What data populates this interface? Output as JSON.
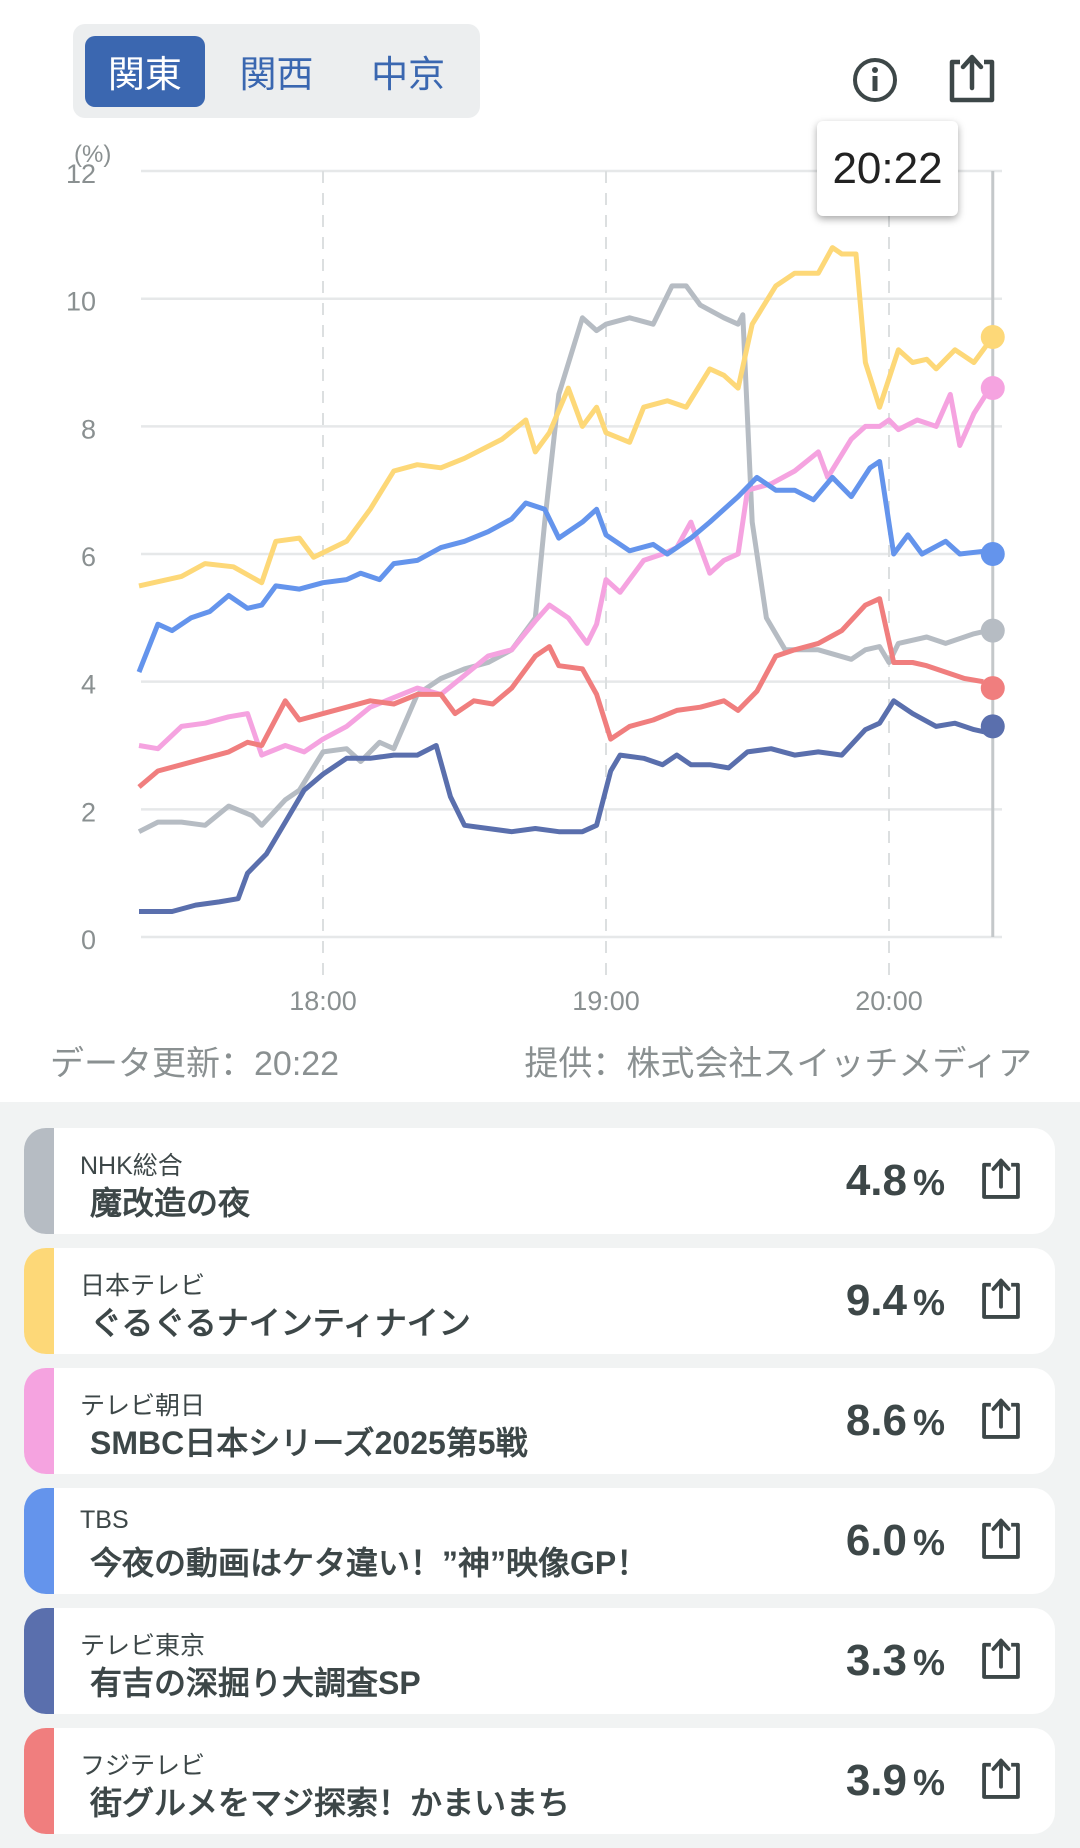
{
  "tabs": [
    {
      "label": "関東",
      "active": true
    },
    {
      "label": "関西",
      "active": false
    },
    {
      "label": "中京",
      "active": false
    }
  ],
  "icons": {
    "info": "info-circle-icon",
    "share": "share-icon"
  },
  "tooltip": "20:22",
  "footer": {
    "updated": "データ更新：20:22",
    "provider": "提供：株式会社スイッチメディア"
  },
  "chart_data": {
    "type": "line",
    "ylabel": "(%)",
    "ylim": [
      0,
      12
    ],
    "yticks": [
      "0",
      "2",
      "4",
      "6",
      "8",
      "10",
      "12"
    ],
    "xticks": [
      "18:00",
      "19:00",
      "20:00"
    ],
    "xrange": [
      "17:21",
      "20:22"
    ],
    "current_time": "20:22",
    "grid": true,
    "series": [
      {
        "name": "NHK総合",
        "color": "#b6bcc3",
        "last": 4.8,
        "points": [
          [
            "17:21",
            1.65
          ],
          [
            "17:25",
            1.8
          ],
          [
            "17:30",
            1.8
          ],
          [
            "17:35",
            1.75
          ],
          [
            "17:40",
            2.05
          ],
          [
            "17:45",
            1.9
          ],
          [
            "17:47",
            1.75
          ],
          [
            "17:52",
            2.15
          ],
          [
            "17:55",
            2.3
          ],
          [
            "18:00",
            2.9
          ],
          [
            "18:05",
            2.95
          ],
          [
            "18:08",
            2.75
          ],
          [
            "18:12",
            3.05
          ],
          [
            "18:15",
            2.95
          ],
          [
            "18:20",
            3.8
          ],
          [
            "18:25",
            4.05
          ],
          [
            "18:30",
            4.2
          ],
          [
            "18:35",
            4.3
          ],
          [
            "18:40",
            4.5
          ],
          [
            "18:45",
            5.0
          ],
          [
            "18:47",
            6.5
          ],
          [
            "18:50",
            8.5
          ],
          [
            "18:55",
            9.7
          ],
          [
            "18:58",
            9.5
          ],
          [
            "19:00",
            9.6
          ],
          [
            "19:05",
            9.7
          ],
          [
            "19:10",
            9.6
          ],
          [
            "19:14",
            10.2
          ],
          [
            "19:17",
            10.2
          ],
          [
            "19:20",
            9.9
          ],
          [
            "19:25",
            9.7
          ],
          [
            "19:28",
            9.6
          ],
          [
            "19:29",
            9.75
          ],
          [
            "19:31",
            6.5
          ],
          [
            "19:34",
            5.0
          ],
          [
            "19:38",
            4.5
          ],
          [
            "19:45",
            4.5
          ],
          [
            "19:52",
            4.35
          ],
          [
            "19:55",
            4.5
          ],
          [
            "19:58",
            4.55
          ],
          [
            "20:00",
            4.3
          ],
          [
            "20:02",
            4.6
          ],
          [
            "20:08",
            4.7
          ],
          [
            "20:12",
            4.6
          ],
          [
            "20:18",
            4.75
          ],
          [
            "20:21",
            4.8
          ]
        ]
      },
      {
        "name": "日本テレビ",
        "color": "#fdd878",
        "last": 9.4,
        "points": [
          [
            "17:21",
            5.5
          ],
          [
            "17:30",
            5.65
          ],
          [
            "17:35",
            5.85
          ],
          [
            "17:41",
            5.8
          ],
          [
            "17:47",
            5.55
          ],
          [
            "17:50",
            6.2
          ],
          [
            "17:55",
            6.25
          ],
          [
            "17:58",
            5.95
          ],
          [
            "18:05",
            6.2
          ],
          [
            "18:10",
            6.7
          ],
          [
            "18:15",
            7.3
          ],
          [
            "18:20",
            7.4
          ],
          [
            "18:25",
            7.35
          ],
          [
            "18:30",
            7.5
          ],
          [
            "18:38",
            7.8
          ],
          [
            "18:43",
            8.1
          ],
          [
            "18:45",
            7.6
          ],
          [
            "18:48",
            7.9
          ],
          [
            "18:52",
            8.6
          ],
          [
            "18:55",
            8.0
          ],
          [
            "18:58",
            8.3
          ],
          [
            "19:00",
            7.9
          ],
          [
            "19:05",
            7.75
          ],
          [
            "19:08",
            8.3
          ],
          [
            "19:13",
            8.4
          ],
          [
            "19:17",
            8.3
          ],
          [
            "19:22",
            8.9
          ],
          [
            "19:25",
            8.8
          ],
          [
            "19:28",
            8.6
          ],
          [
            "19:31",
            9.6
          ],
          [
            "19:36",
            10.2
          ],
          [
            "19:40",
            10.4
          ],
          [
            "19:45",
            10.4
          ],
          [
            "19:48",
            10.8
          ],
          [
            "19:50",
            10.7
          ],
          [
            "19:53",
            10.7
          ],
          [
            "19:55",
            9.0
          ],
          [
            "19:58",
            8.3
          ],
          [
            "20:02",
            9.2
          ],
          [
            "20:05",
            9.0
          ],
          [
            "20:08",
            9.05
          ],
          [
            "20:10",
            8.9
          ],
          [
            "20:14",
            9.2
          ],
          [
            "20:18",
            9.0
          ],
          [
            "20:21",
            9.3
          ]
        ]
      },
      {
        "name": "テレビ朝日",
        "color": "#f5a3e0",
        "last": 8.6,
        "points": [
          [
            "17:21",
            3.0
          ],
          [
            "17:25",
            2.95
          ],
          [
            "17:30",
            3.3
          ],
          [
            "17:35",
            3.35
          ],
          [
            "17:40",
            3.45
          ],
          [
            "17:44",
            3.5
          ],
          [
            "17:47",
            2.85
          ],
          [
            "17:52",
            3.0
          ],
          [
            "17:56",
            2.9
          ],
          [
            "18:00",
            3.1
          ],
          [
            "18:05",
            3.3
          ],
          [
            "18:10",
            3.6
          ],
          [
            "18:15",
            3.75
          ],
          [
            "18:20",
            3.9
          ],
          [
            "18:25",
            3.8
          ],
          [
            "18:30",
            4.1
          ],
          [
            "18:35",
            4.4
          ],
          [
            "18:40",
            4.5
          ],
          [
            "18:45",
            4.95
          ],
          [
            "18:48",
            5.2
          ],
          [
            "18:52",
            5.0
          ],
          [
            "18:56",
            4.6
          ],
          [
            "18:58",
            4.9
          ],
          [
            "19:00",
            5.6
          ],
          [
            "19:03",
            5.4
          ],
          [
            "19:08",
            5.9
          ],
          [
            "19:12",
            6.0
          ],
          [
            "19:15",
            6.1
          ],
          [
            "19:18",
            6.5
          ],
          [
            "19:22",
            5.7
          ],
          [
            "19:25",
            5.9
          ],
          [
            "19:28",
            6.0
          ],
          [
            "19:30",
            7.0
          ],
          [
            "19:35",
            7.1
          ],
          [
            "19:40",
            7.3
          ],
          [
            "19:45",
            7.6
          ],
          [
            "19:47",
            7.2
          ],
          [
            "19:52",
            7.8
          ],
          [
            "19:55",
            8.0
          ],
          [
            "19:58",
            8.0
          ],
          [
            "20:00",
            8.1
          ],
          [
            "20:02",
            7.95
          ],
          [
            "20:06",
            8.1
          ],
          [
            "20:10",
            8.0
          ],
          [
            "20:13",
            8.5
          ],
          [
            "20:15",
            7.7
          ],
          [
            "20:18",
            8.2
          ],
          [
            "20:21",
            8.55
          ]
        ]
      },
      {
        "name": "TBS",
        "color": "#6494ec",
        "last": 6.0,
        "points": [
          [
            "17:21",
            4.15
          ],
          [
            "17:25",
            4.9
          ],
          [
            "17:28",
            4.8
          ],
          [
            "17:32",
            5.0
          ],
          [
            "17:36",
            5.1
          ],
          [
            "17:40",
            5.35
          ],
          [
            "17:44",
            5.15
          ],
          [
            "17:47",
            5.2
          ],
          [
            "17:50",
            5.5
          ],
          [
            "17:55",
            5.45
          ],
          [
            "18:00",
            5.55
          ],
          [
            "18:05",
            5.6
          ],
          [
            "18:08",
            5.7
          ],
          [
            "18:12",
            5.6
          ],
          [
            "18:15",
            5.85
          ],
          [
            "18:20",
            5.9
          ],
          [
            "18:25",
            6.1
          ],
          [
            "18:30",
            6.2
          ],
          [
            "18:35",
            6.35
          ],
          [
            "18:40",
            6.55
          ],
          [
            "18:43",
            6.8
          ],
          [
            "18:47",
            6.7
          ],
          [
            "18:50",
            6.25
          ],
          [
            "18:55",
            6.5
          ],
          [
            "18:58",
            6.7
          ],
          [
            "19:00",
            6.3
          ],
          [
            "19:05",
            6.05
          ],
          [
            "19:10",
            6.15
          ],
          [
            "19:13",
            6.0
          ],
          [
            "19:18",
            6.25
          ],
          [
            "19:22",
            6.5
          ],
          [
            "19:28",
            6.9
          ],
          [
            "19:32",
            7.2
          ],
          [
            "19:36",
            7.0
          ],
          [
            "19:40",
            7.0
          ],
          [
            "19:44",
            6.85
          ],
          [
            "19:48",
            7.2
          ],
          [
            "19:52",
            6.9
          ],
          [
            "19:56",
            7.35
          ],
          [
            "19:58",
            7.45
          ],
          [
            "20:01",
            6.0
          ],
          [
            "20:04",
            6.3
          ],
          [
            "20:07",
            6.0
          ],
          [
            "20:12",
            6.2
          ],
          [
            "20:15",
            6.0
          ],
          [
            "20:21",
            6.05
          ]
        ]
      },
      {
        "name": "テレビ東京",
        "color": "#5a6fad",
        "last": 3.3,
        "points": [
          [
            "17:21",
            0.4
          ],
          [
            "17:28",
            0.4
          ],
          [
            "17:33",
            0.5
          ],
          [
            "17:38",
            0.55
          ],
          [
            "17:42",
            0.6
          ],
          [
            "17:44",
            1.0
          ],
          [
            "17:48",
            1.3
          ],
          [
            "17:52",
            1.8
          ],
          [
            "17:56",
            2.3
          ],
          [
            "18:00",
            2.55
          ],
          [
            "18:05",
            2.8
          ],
          [
            "18:10",
            2.8
          ],
          [
            "18:15",
            2.85
          ],
          [
            "18:20",
            2.85
          ],
          [
            "18:24",
            3.0
          ],
          [
            "18:27",
            2.2
          ],
          [
            "18:30",
            1.75
          ],
          [
            "18:35",
            1.7
          ],
          [
            "18:40",
            1.65
          ],
          [
            "18:45",
            1.7
          ],
          [
            "18:50",
            1.65
          ],
          [
            "18:55",
            1.65
          ],
          [
            "18:58",
            1.75
          ],
          [
            "19:01",
            2.6
          ],
          [
            "19:03",
            2.85
          ],
          [
            "19:08",
            2.8
          ],
          [
            "19:12",
            2.7
          ],
          [
            "19:15",
            2.85
          ],
          [
            "19:18",
            2.7
          ],
          [
            "19:22",
            2.7
          ],
          [
            "19:26",
            2.65
          ],
          [
            "19:30",
            2.9
          ],
          [
            "19:35",
            2.95
          ],
          [
            "19:40",
            2.85
          ],
          [
            "19:45",
            2.9
          ],
          [
            "19:50",
            2.85
          ],
          [
            "19:55",
            3.25
          ],
          [
            "19:58",
            3.35
          ],
          [
            "20:01",
            3.7
          ],
          [
            "20:05",
            3.5
          ],
          [
            "20:10",
            3.3
          ],
          [
            "20:14",
            3.35
          ],
          [
            "20:18",
            3.25
          ],
          [
            "20:21",
            3.2
          ]
        ]
      },
      {
        "name": "フジテレビ",
        "color": "#f07e7e",
        "last": 3.9,
        "points": [
          [
            "17:21",
            2.35
          ],
          [
            "17:25",
            2.6
          ],
          [
            "17:30",
            2.7
          ],
          [
            "17:35",
            2.8
          ],
          [
            "17:40",
            2.9
          ],
          [
            "17:44",
            3.05
          ],
          [
            "17:47",
            3.0
          ],
          [
            "17:52",
            3.7
          ],
          [
            "17:55",
            3.4
          ],
          [
            "18:00",
            3.5
          ],
          [
            "18:05",
            3.6
          ],
          [
            "18:10",
            3.7
          ],
          [
            "18:15",
            3.65
          ],
          [
            "18:20",
            3.8
          ],
          [
            "18:25",
            3.8
          ],
          [
            "18:28",
            3.5
          ],
          [
            "18:32",
            3.7
          ],
          [
            "18:36",
            3.65
          ],
          [
            "18:40",
            3.9
          ],
          [
            "18:45",
            4.4
          ],
          [
            "18:48",
            4.55
          ],
          [
            "18:50",
            4.25
          ],
          [
            "18:55",
            4.2
          ],
          [
            "18:58",
            3.8
          ],
          [
            "19:01",
            3.1
          ],
          [
            "19:05",
            3.3
          ],
          [
            "19:10",
            3.4
          ],
          [
            "19:15",
            3.55
          ],
          [
            "19:20",
            3.6
          ],
          [
            "19:25",
            3.7
          ],
          [
            "19:28",
            3.55
          ],
          [
            "19:32",
            3.85
          ],
          [
            "19:36",
            4.4
          ],
          [
            "19:40",
            4.5
          ],
          [
            "19:45",
            4.6
          ],
          [
            "19:50",
            4.8
          ],
          [
            "19:55",
            5.2
          ],
          [
            "19:58",
            5.3
          ],
          [
            "20:01",
            4.3
          ],
          [
            "20:05",
            4.3
          ],
          [
            "20:08",
            4.25
          ],
          [
            "20:12",
            4.15
          ],
          [
            "20:16",
            4.05
          ],
          [
            "20:20",
            4.0
          ]
        ]
      }
    ]
  },
  "programs": [
    {
      "channel": "NHK総合",
      "title": "魔改造の夜",
      "value": "4.8",
      "unit": "%",
      "color": "#b6bcc3"
    },
    {
      "channel": "日本テレビ",
      "title": "ぐるぐるナインティナイン",
      "value": "9.4",
      "unit": "%",
      "color": "#fdd878"
    },
    {
      "channel": "テレビ朝日",
      "title": "SMBC日本シリーズ2025第5戦",
      "value": "8.6",
      "unit": "%",
      "color": "#f5a3e0"
    },
    {
      "channel": "TBS",
      "title": "今夜の動画はケタ違い！”神”映像GP！",
      "value": "6.0",
      "unit": "%",
      "color": "#6494ec"
    },
    {
      "channel": "テレビ東京",
      "title": "有吉の深掘り大調査SP",
      "value": "3.3",
      "unit": "%",
      "color": "#5a6fad"
    },
    {
      "channel": "フジテレビ",
      "title": "街グルメをマジ探索！かまいまち",
      "value": "3.9",
      "unit": "%",
      "color": "#f07e7e"
    }
  ]
}
